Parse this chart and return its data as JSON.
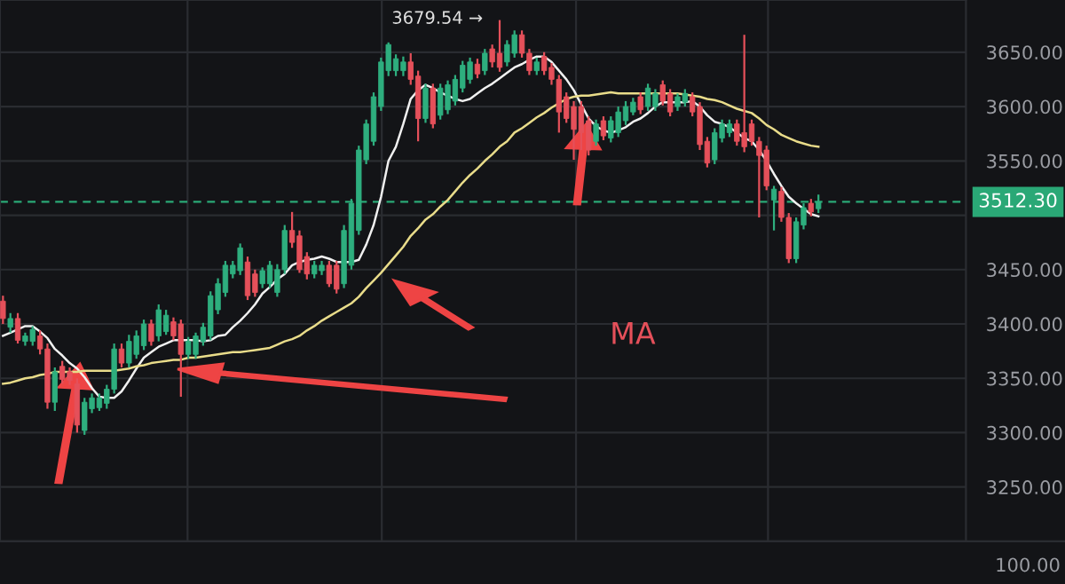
{
  "chart_data": {
    "type": "candlestick",
    "categories": [
      null,
      null,
      null,
      null,
      null,
      null,
      null,
      null,
      null,
      null,
      null,
      null,
      null,
      null,
      null,
      null,
      null,
      null,
      null,
      null,
      null,
      null,
      null,
      null,
      null,
      null,
      null,
      null,
      null,
      null,
      null,
      null,
      null,
      null,
      null,
      null,
      null,
      null,
      null,
      null,
      null,
      null,
      null,
      null,
      null,
      null,
      null,
      null,
      null,
      null,
      null,
      null,
      null,
      null,
      null,
      null,
      null,
      null,
      null,
      null,
      null,
      null,
      null,
      null,
      null,
      null,
      null,
      null,
      null,
      null,
      null,
      null,
      null,
      null,
      null,
      null,
      null,
      null,
      null,
      null,
      null,
      null,
      null,
      null,
      null,
      null,
      null,
      null,
      null,
      null,
      null,
      null,
      null,
      null,
      null,
      null,
      null,
      null,
      null,
      null,
      null,
      null,
      null,
      null,
      null,
      null,
      null,
      null,
      null,
      null,
      null
    ],
    "ohlc": [
      [
        3421,
        3426,
        3400,
        3405
      ],
      [
        3397,
        3410,
        3392,
        3405
      ],
      [
        3405,
        3410,
        3382,
        3385
      ],
      [
        3384,
        3392,
        3380,
        3389
      ],
      [
        3384,
        3398,
        3380,
        3395
      ],
      [
        3389,
        3394,
        3372,
        3377
      ],
      [
        3377,
        3382,
        3322,
        3328
      ],
      [
        3328,
        3360,
        3320,
        3356
      ],
      [
        3361,
        3366,
        3345,
        3349
      ],
      [
        3356,
        3360,
        3344,
        3348
      ],
      [
        3345,
        3350,
        3300,
        3307
      ],
      [
        3302,
        3332,
        3298,
        3328
      ],
      [
        3322,
        3336,
        3318,
        3332
      ],
      [
        3323,
        3336,
        3320,
        3332
      ],
      [
        3327,
        3344,
        3322,
        3340
      ],
      [
        3340,
        3382,
        3336,
        3377
      ],
      [
        3377,
        3382,
        3360,
        3364
      ],
      [
        3364,
        3390,
        3360,
        3384
      ],
      [
        3372,
        3394,
        3368,
        3389
      ],
      [
        3380,
        3404,
        3376,
        3400
      ],
      [
        3400,
        3404,
        3380,
        3384
      ],
      [
        3389,
        3418,
        3384,
        3413
      ],
      [
        3393,
        3413,
        3390,
        3408
      ],
      [
        3402,
        3406,
        3385,
        3389
      ],
      [
        3400,
        3404,
        3333,
        3372
      ],
      [
        3372,
        3388,
        3368,
        3384
      ],
      [
        3372,
        3392,
        3368,
        3389
      ],
      [
        3384,
        3401,
        3380,
        3397
      ],
      [
        3389,
        3430,
        3385,
        3426
      ],
      [
        3413,
        3442,
        3409,
        3437
      ],
      [
        3429,
        3458,
        3425,
        3454
      ],
      [
        3446,
        3458,
        3442,
        3454
      ],
      [
        3449,
        3474,
        3445,
        3470
      ],
      [
        3457,
        3462,
        3422,
        3426
      ],
      [
        3446,
        3450,
        3425,
        3429
      ],
      [
        3437,
        3452,
        3433,
        3449
      ],
      [
        3437,
        3458,
        3433,
        3454
      ],
      [
        3429,
        3455,
        3425,
        3450
      ],
      [
        3450,
        3491,
        3446,
        3486
      ],
      [
        3486,
        3503,
        3470,
        3475
      ],
      [
        3481,
        3486,
        3447,
        3450
      ],
      [
        3462,
        3466,
        3441,
        3446
      ],
      [
        3446,
        3458,
        3442,
        3454
      ],
      [
        3449,
        3458,
        3445,
        3454
      ],
      [
        3454,
        3458,
        3434,
        3437
      ],
      [
        3454,
        3458,
        3428,
        3432
      ],
      [
        3437,
        3491,
        3433,
        3486
      ],
      [
        3454,
        3515,
        3450,
        3511
      ],
      [
        3486,
        3564,
        3482,
        3560
      ],
      [
        3551,
        3588,
        3547,
        3584
      ],
      [
        3568,
        3613,
        3564,
        3609
      ],
      [
        3600,
        3645,
        3596,
        3641
      ],
      [
        3633,
        3659,
        3628,
        3657
      ],
      [
        3633,
        3648,
        3628,
        3644
      ],
      [
        3633,
        3646,
        3628,
        3641
      ],
      [
        3641,
        3649,
        3620,
        3625
      ],
      [
        3628,
        3633,
        3568,
        3589
      ],
      [
        3589,
        3621,
        3585,
        3617
      ],
      [
        3617,
        3621,
        3580,
        3584
      ],
      [
        3592,
        3621,
        3588,
        3617
      ],
      [
        3597,
        3624,
        3593,
        3620
      ],
      [
        3605,
        3629,
        3601,
        3625
      ],
      [
        3617,
        3642,
        3613,
        3638
      ],
      [
        3625,
        3645,
        3621,
        3641
      ],
      [
        3639,
        3644,
        3626,
        3630
      ],
      [
        3633,
        3653,
        3629,
        3649
      ],
      [
        3653,
        3657,
        3636,
        3641
      ],
      [
        3649,
        3679.54,
        3632,
        3636
      ],
      [
        3641,
        3661,
        3637,
        3657
      ],
      [
        3649,
        3670,
        3645,
        3666
      ],
      [
        3666,
        3670,
        3645,
        3649
      ],
      [
        3649,
        3653,
        3629,
        3633
      ],
      [
        3633,
        3645,
        3629,
        3641
      ],
      [
        3646,
        3650,
        3629,
        3633
      ],
      [
        3636,
        3640,
        3620,
        3625
      ],
      [
        3625,
        3629,
        3576,
        3595
      ],
      [
        3609,
        3613,
        3585,
        3589
      ],
      [
        3600,
        3605,
        3551,
        3579
      ],
      [
        3600,
        3605,
        3560,
        3576
      ],
      [
        3587,
        3591,
        3555,
        3560
      ],
      [
        3568,
        3588,
        3564,
        3584
      ],
      [
        3587,
        3591,
        3569,
        3573
      ],
      [
        3571,
        3591,
        3567,
        3587
      ],
      [
        3576,
        3600,
        3572,
        3595
      ],
      [
        3587,
        3605,
        3583,
        3600
      ],
      [
        3595,
        3608,
        3592,
        3604
      ],
      [
        3609,
        3613,
        3593,
        3597
      ],
      [
        3600,
        3621,
        3596,
        3617
      ],
      [
        3600,
        3616,
        3596,
        3612
      ],
      [
        3620,
        3624,
        3601,
        3605
      ],
      [
        3612,
        3616,
        3591,
        3595
      ],
      [
        3600,
        3612,
        3596,
        3609
      ],
      [
        3604,
        3616,
        3600,
        3612
      ],
      [
        3609,
        3613,
        3591,
        3595
      ],
      [
        3600,
        3604,
        3560,
        3565
      ],
      [
        3568,
        3572,
        3544,
        3548
      ],
      [
        3551,
        3580,
        3547,
        3576
      ],
      [
        3571,
        3588,
        3567,
        3584
      ],
      [
        3576,
        3588,
        3572,
        3584
      ],
      [
        3584,
        3588,
        3564,
        3568
      ],
      [
        3576,
        3666,
        3558,
        3563
      ],
      [
        3584,
        3588,
        3564,
        3568
      ],
      [
        3568,
        3572,
        3498,
        3555
      ],
      [
        3560,
        3564,
        3523,
        3527
      ],
      [
        3514,
        3527,
        3486,
        3524
      ],
      [
        3522,
        3526,
        3494,
        3498
      ],
      [
        3498,
        3502,
        3456,
        3460
      ],
      [
        3460,
        3498,
        3456,
        3494
      ],
      [
        3491,
        3511,
        3487,
        3507
      ],
      [
        3511,
        3515,
        3499,
        3503
      ],
      [
        3506,
        3519,
        3502,
        3512.3
      ]
    ],
    "series": [
      {
        "type": "line",
        "color": "#f0f0f0",
        "values": [
          3389,
          3392,
          3395,
          3398,
          3398,
          3393,
          3387,
          3377,
          3371,
          3364,
          3359,
          3351,
          3341,
          3333,
          3332,
          3332,
          3338,
          3348,
          3359,
          3369,
          3374,
          3379,
          3382,
          3385,
          3385,
          3385,
          3385,
          3384,
          3385,
          3389,
          3390,
          3397,
          3403,
          3410,
          3418,
          3428,
          3434,
          3441,
          3446,
          3454,
          3457,
          3459,
          3460,
          3462,
          3460,
          3457,
          3457,
          3457,
          3459,
          3473,
          3491,
          3517,
          3550,
          3563,
          3584,
          3607,
          3615,
          3620,
          3617,
          3613,
          3610,
          3607,
          3605,
          3607,
          3612,
          3617,
          3621,
          3626,
          3631,
          3636,
          3639,
          3643,
          3646,
          3646,
          3641,
          3633,
          3625,
          3615,
          3602,
          3589,
          3582,
          3578,
          3576,
          3578,
          3581,
          3586,
          3589,
          3594,
          3600,
          3604,
          3604,
          3604,
          3604,
          3605,
          3600,
          3592,
          3586,
          3584,
          3581,
          3576,
          3571,
          3568,
          3560,
          3550,
          3538,
          3527,
          3517,
          3511,
          3506,
          3501,
          3499
        ]
      },
      {
        "type": "line",
        "color": "#e9dc8a",
        "values": [
          3345,
          3346,
          3348,
          3350,
          3351,
          3353,
          3354,
          3356,
          3356,
          3356,
          3356,
          3357,
          3357,
          3357,
          3357,
          3357,
          3358,
          3359,
          3361,
          3362,
          3364,
          3365,
          3366,
          3367,
          3367,
          3369,
          3369,
          3370,
          3371,
          3372,
          3373,
          3374,
          3374,
          3375,
          3376,
          3377,
          3378,
          3381,
          3384,
          3386,
          3389,
          3394,
          3398,
          3403,
          3407,
          3411,
          3415,
          3419,
          3425,
          3433,
          3440,
          3447,
          3455,
          3463,
          3471,
          3481,
          3488,
          3496,
          3501,
          3508,
          3514,
          3522,
          3530,
          3537,
          3543,
          3550,
          3556,
          3563,
          3568,
          3576,
          3580,
          3585,
          3590,
          3594,
          3599,
          3603,
          3607,
          3609,
          3610,
          3610,
          3611,
          3612,
          3613,
          3612,
          3612,
          3612,
          3612,
          3612,
          3612,
          3612,
          3612,
          3612,
          3611,
          3610,
          3609,
          3607,
          3606,
          3604,
          3601,
          3598,
          3596,
          3594,
          3589,
          3583,
          3579,
          3574,
          3571,
          3568,
          3566,
          3564,
          3563
        ]
      }
    ],
    "ylim": [
      3200,
      3698
    ],
    "yticks": [
      {
        "value": 3250,
        "label": "3250.00"
      },
      {
        "value": 3300,
        "label": "3300.00"
      },
      {
        "value": 3350,
        "label": "3350.00"
      },
      {
        "value": 3400,
        "label": "3400.00"
      },
      {
        "value": 3450,
        "label": "3450.00"
      },
      {
        "value": 3500,
        "label": null
      },
      {
        "value": 3550,
        "label": "3550.00"
      },
      {
        "value": 3600,
        "label": "3600.00"
      },
      {
        "value": 3650,
        "label": "3650.00"
      }
    ],
    "ref_lines": [
      {
        "axis": "y",
        "value": 3512.3,
        "label": "3512.30",
        "color": "#2aa876",
        "line_style": "dashed"
      }
    ],
    "annotations": [
      "3679.54 →",
      "MA",
      "100.00"
    ],
    "grid": true,
    "tick_labels": "y"
  }
}
